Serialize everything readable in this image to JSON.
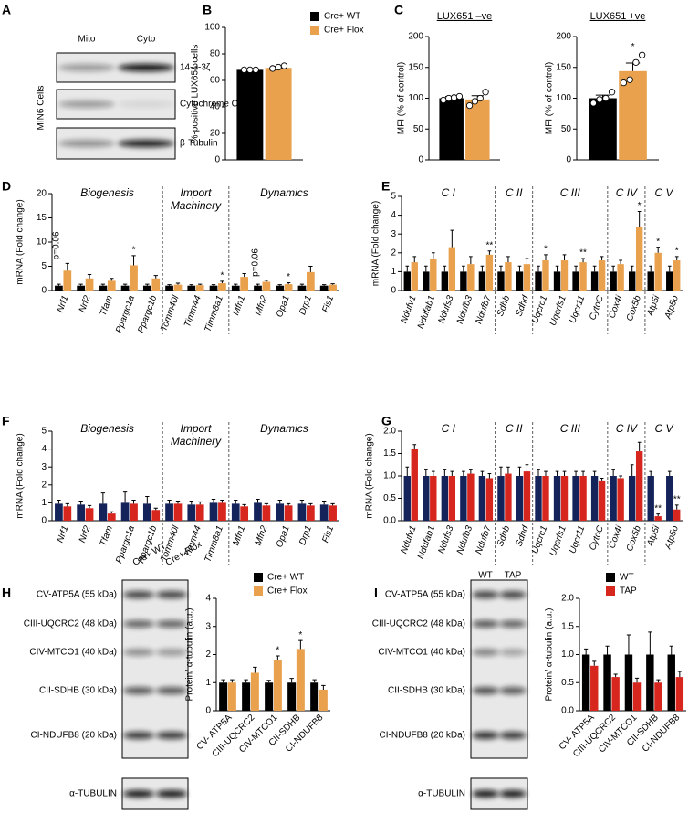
{
  "blots": [
    {
      "panel": "A",
      "side_label": "MIN6 Cells",
      "lanes": [
        "Mito",
        "Cyto"
      ],
      "bands": [
        "14-3-3ζ",
        "Cytochrome C",
        "β-Tubulin"
      ]
    },
    {
      "lanes": [
        "Cre+ WT",
        "Cre+ Flox"
      ],
      "bands": [
        "CV-ATP5A (55 kDa)",
        "CIII-UQCRC2 (48 kDa)",
        "CIV-MTCO1 (40 kDa)",
        "CII-SDHB (30 kDa)",
        "CI-NDUFB8 (20 kDa)",
        "α-TUBULIN"
      ]
    },
    {
      "lanes": [
        "WT",
        "TAP"
      ],
      "bands": [
        "CV-ATP5A (55 kDa)",
        "CIII-UQCRC2 (48 kDa)",
        "CIV-MTCO1 (40 kDa)",
        "CII-SDHB (30 kDa)",
        "CI-NDUFB8 (20 kDa)",
        "α-TUBULIN"
      ]
    }
  ],
  "chart_data": [
    {
      "type": "bar",
      "panel": "B",
      "ylabel": "%-positive LUX651 cells",
      "categories": [
        null
      ],
      "series": [
        {
          "name": "Cre+ WT",
          "color": "#000000",
          "values": [
            68
          ],
          "errors": [
            0.5
          ],
          "points": [
            [
              68,
              68,
              68
            ]
          ]
        },
        {
          "name": "Cre+ Flox",
          "color": "#e9a14e",
          "values": [
            69.5
          ],
          "errors": [
            1
          ],
          "points": [
            [
              69,
              70,
              71
            ]
          ]
        }
      ],
      "ylim": [
        0,
        100
      ],
      "yticks": [
        0,
        20,
        40,
        60,
        80,
        100
      ],
      "legend": "upper right"
    },
    {
      "type": "bar",
      "panel": "C",
      "title": "LUX651 –ve",
      "ylabel": "MFI (% of control)",
      "categories": [
        null
      ],
      "series": [
        {
          "color": "#000000",
          "values": [
            100
          ],
          "errors": [
            3
          ],
          "points": [
            [
              97,
              100,
              101,
              103
            ]
          ]
        },
        {
          "color": "#e9a14e",
          "values": [
            98
          ],
          "errors": [
            6
          ],
          "points": [
            [
              88,
              95,
              100,
              110
            ]
          ]
        }
      ],
      "ylim": [
        0,
        200
      ],
      "yticks": [
        0,
        50,
        100,
        150,
        200
      ]
    },
    {
      "type": "bar",
      "title": "LUX651 +ve",
      "ylabel": "MFI (% of control)",
      "categories": [
        null
      ],
      "series": [
        {
          "color": "#000000",
          "values": [
            100
          ],
          "errors": [
            5
          ],
          "points": [
            [
              92,
              98,
              100,
              110
            ]
          ]
        },
        {
          "color": "#e9a14e",
          "values": [
            144
          ],
          "errors": [
            13
          ],
          "points": [
            [
              125,
              130,
              158,
              170
            ]
          ],
          "annotations": [
            "*"
          ]
        }
      ],
      "ylim": [
        0,
        200
      ],
      "yticks": [
        0,
        50,
        100,
        150,
        200
      ]
    },
    {
      "type": "bar",
      "panel": "D",
      "ylabel": "mRNA (Fold change)",
      "groups": [
        "Biogenesis",
        "Import Machinery",
        "Dynamics"
      ],
      "categories": [
        "Nrf1",
        "Nrf2",
        "Tfam",
        "Ppargc1a",
        "Ppargc1b",
        "Tomm40l",
        "Timm44",
        "Timm8a1",
        "Mfn1",
        "Mfn2",
        "Opa1",
        "Drp1",
        "Fis1"
      ],
      "series": [
        {
          "color": "#000000",
          "values": [
            1,
            1,
            1,
            1,
            1,
            1,
            1,
            1,
            1,
            1,
            1,
            1,
            1
          ],
          "errors": [
            0.3,
            0.3,
            0.3,
            0.3,
            0.3,
            0.2,
            0.2,
            0.2,
            0.3,
            0.3,
            0.2,
            0.3,
            0.2
          ]
        },
        {
          "color": "#e9a14e",
          "values": [
            4.1,
            2.5,
            2,
            5.2,
            2.5,
            1.2,
            1.1,
            1.5,
            2.8,
            1.8,
            1.3,
            3.8,
            1.2
          ],
          "errors": [
            1.5,
            0.8,
            0.5,
            2,
            0.6,
            0.3,
            0.2,
            0.4,
            0.7,
            0.3,
            0.3,
            1.2,
            0.2
          ],
          "annotations": [
            "p=0.06",
            null,
            null,
            "*",
            null,
            null,
            null,
            "*",
            null,
            "p=0.06",
            "*",
            null,
            null
          ]
        }
      ],
      "ylim": [
        0,
        20
      ],
      "yticks": [
        0,
        5,
        10,
        15,
        20
      ]
    },
    {
      "type": "bar",
      "panel": "E",
      "ylabel": "mRNA (Fold change)",
      "groups": [
        "C I",
        "C II",
        "C III",
        "C IV",
        "C V"
      ],
      "categories": [
        "Ndufv1",
        "Ndufab1",
        "Ndufs3",
        "Ndufb3",
        "Ndufb7",
        "Sdhb",
        "Sdhd",
        "Uqcrc1",
        "Uqcrfs1",
        "Uqcr11",
        "CytoC",
        "Cox4i",
        "Cox5b",
        "Atp5i",
        "Atp5o"
      ],
      "series": [
        {
          "color": "#000000",
          "values": [
            1,
            1,
            1,
            1,
            1,
            1,
            1,
            1,
            1,
            1,
            1,
            1,
            1,
            1,
            1
          ],
          "errors": [
            0.3,
            0.3,
            0.3,
            0.3,
            0.3,
            0.3,
            0.3,
            0.3,
            0.3,
            0.3,
            0.3,
            0.3,
            0.3,
            0.3,
            0.3
          ]
        },
        {
          "color": "#e9a14e",
          "values": [
            1.5,
            1.7,
            2.3,
            1.4,
            1.9,
            1.5,
            1.4,
            1.6,
            1.6,
            1.5,
            1.6,
            1.4,
            3.4,
            2,
            1.6
          ],
          "errors": [
            0.3,
            0.3,
            0.9,
            0.4,
            0.2,
            0.3,
            0.3,
            0.3,
            0.3,
            0.2,
            0.2,
            0.2,
            0.8,
            0.3,
            0.2
          ],
          "annotations": [
            null,
            null,
            null,
            null,
            "**",
            null,
            null,
            "*",
            null,
            "**",
            null,
            null,
            "*",
            "*",
            "*"
          ]
        }
      ],
      "ylim": [
        0,
        5
      ],
      "yticks": [
        0,
        1,
        2,
        3,
        4,
        5
      ]
    },
    {
      "type": "bar",
      "panel": "F",
      "ylabel": "mRNA (Fold change)",
      "groups": [
        "Biogenesis",
        "Import Machinery",
        "Dynamics"
      ],
      "categories": [
        "Nrf1",
        "Nrf2",
        "Tfam",
        "Ppargc1a",
        "Ppargc1b",
        "Tomm40l",
        "Timm44",
        "Timm8a1",
        "Mfn1",
        "Mfn2",
        "Opa1",
        "Drp1",
        "Fis1"
      ],
      "series": [
        {
          "color": "#14235a",
          "values": [
            0.95,
            0.9,
            0.95,
            1,
            0.95,
            0.95,
            0.9,
            1,
            0.95,
            1,
            0.95,
            0.95,
            0.9
          ],
          "errors": [
            0.2,
            0.2,
            0.6,
            0.6,
            0.4,
            0.2,
            0.2,
            0.2,
            0.2,
            0.2,
            0.2,
            0.2,
            0.2
          ]
        },
        {
          "color": "#d7261e",
          "values": [
            0.8,
            0.7,
            0.4,
            0.95,
            0.6,
            0.95,
            0.9,
            1,
            0.8,
            0.85,
            0.85,
            0.85,
            0.85
          ],
          "errors": [
            0.15,
            0.15,
            0.1,
            0.2,
            0.1,
            0.15,
            0.15,
            0.15,
            0.1,
            0.1,
            0.1,
            0.1,
            0.1
          ]
        }
      ],
      "ylim": [
        0,
        5
      ],
      "yticks": [
        0,
        1,
        2,
        3,
        4,
        5
      ]
    },
    {
      "type": "bar",
      "panel": "G",
      "ylabel": "mRNA (Fold change)",
      "groups": [
        "C I",
        "C II",
        "C III",
        "C IV",
        "C V"
      ],
      "categories": [
        "Ndufv1",
        "Ndufab1",
        "Ndufs3",
        "Ndufb3",
        "Ndufb7",
        "Sdhb",
        "Sdhd",
        "Uqcrc1",
        "Uqcrfs1",
        "Uqcr11",
        "CytoC",
        "Cox4i",
        "Cox5b",
        "Atp5i",
        "Atp5o"
      ],
      "series": [
        {
          "color": "#14235a",
          "values": [
            1,
            1,
            1,
            1,
            1,
            1,
            1,
            1,
            1,
            1,
            1,
            1,
            1,
            1,
            1
          ],
          "errors": [
            0.2,
            0.15,
            0.15,
            0.1,
            0.1,
            0.2,
            0.2,
            0.15,
            0.1,
            0.1,
            0.1,
            0.15,
            0.25,
            0.1,
            0.1
          ]
        },
        {
          "color": "#d7261e",
          "values": [
            1.6,
            1,
            1,
            1.05,
            0.95,
            1.05,
            1.1,
            1,
            1,
            1,
            0.9,
            0.95,
            1.55,
            0.1,
            0.25
          ],
          "errors": [
            0.1,
            0.1,
            0.1,
            0.1,
            0.1,
            0.15,
            0.15,
            0.1,
            0.1,
            0.1,
            0.05,
            0.05,
            0.2,
            0.05,
            0.1
          ],
          "annotations": [
            null,
            null,
            null,
            null,
            null,
            null,
            null,
            null,
            null,
            null,
            null,
            null,
            null,
            "**",
            "**"
          ]
        }
      ],
      "ylim": [
        0,
        2
      ],
      "yticks": [
        {
          "value": 0,
          "label": "0.0"
        },
        {
          "value": 0.5,
          "label": "0.5"
        },
        {
          "value": 1,
          "label": "1.0"
        },
        {
          "value": 1.5,
          "label": "1.5"
        },
        {
          "value": 2,
          "label": "2.0"
        }
      ]
    },
    {
      "type": "bar",
      "panel": "H",
      "ylabel": "Protein/ α-tubulin (a.u.)",
      "categories": [
        "CV- ATP5A",
        "CIII-UQCRC2",
        "CIV-MTCO1",
        "CII-SDHB",
        "CI-NDUFB8"
      ],
      "series": [
        {
          "name": "Cre+ WT",
          "color": "#000000",
          "values": [
            1,
            1,
            1,
            1,
            1
          ],
          "errors": [
            0.1,
            0.1,
            0.08,
            0.15,
            0.1
          ]
        },
        {
          "name": "Cre+ Flox",
          "color": "#e9a14e",
          "values": [
            1,
            1.35,
            1.8,
            2.2,
            0.75
          ],
          "errors": [
            0.1,
            0.2,
            0.15,
            0.3,
            0.15
          ],
          "annotations": [
            null,
            null,
            "*",
            "*",
            null
          ]
        }
      ],
      "ylim": [
        0,
        4
      ],
      "yticks": [
        0,
        1,
        2,
        3,
        4
      ],
      "legend": "upper right"
    },
    {
      "type": "bar",
      "panel": "I",
      "ylabel": "Protein/ α-tubulin (a.u.)",
      "categories": [
        "CV- ATP5A",
        "CIII-UQCRC2",
        "CIV-MTCO1",
        "CII-SDHB",
        "CI-NDUFB8"
      ],
      "series": [
        {
          "name": "WT",
          "color": "#000000",
          "values": [
            1,
            1,
            1,
            1,
            1
          ],
          "errors": [
            0.1,
            0.15,
            0.35,
            0.4,
            0.15
          ]
        },
        {
          "name": "TAP",
          "color": "#d7261e",
          "values": [
            0.8,
            0.6,
            0.5,
            0.5,
            0.6
          ],
          "errors": [
            0.08,
            0.05,
            0.08,
            0.05,
            0.1
          ]
        }
      ],
      "ylim": [
        0,
        2
      ],
      "yticks": [
        {
          "value": 0,
          "label": "0.0"
        },
        {
          "value": 0.5,
          "label": "0.5"
        },
        {
          "value": 1,
          "label": "1.0"
        },
        {
          "value": 1.5,
          "label": "1.5"
        },
        {
          "value": 2,
          "label": "2.0"
        }
      ],
      "legend": "upper right"
    }
  ]
}
